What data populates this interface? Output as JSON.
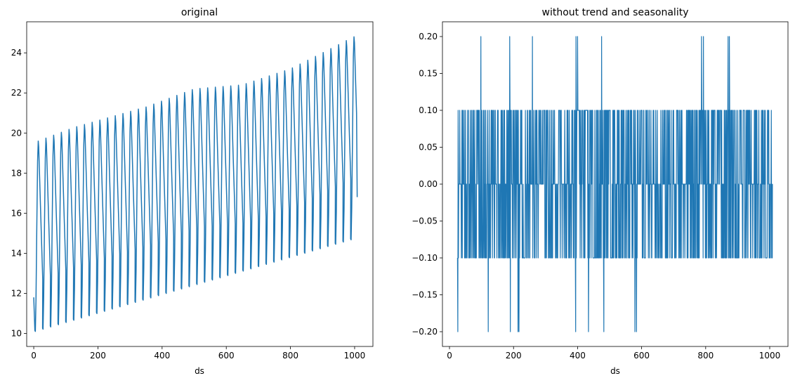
{
  "chart_data": [
    {
      "type": "line",
      "title": "original",
      "xlabel": "ds",
      "ylabel": "",
      "xlim": [
        -22,
        1057
      ],
      "ylim": [
        9.35,
        25.55
      ],
      "xticks": [
        0,
        200,
        400,
        600,
        800,
        1000
      ],
      "yticks": [
        10,
        12,
        14,
        16,
        18,
        20,
        22,
        24
      ],
      "grid": false,
      "series_color": "#1f77b4",
      "series": {
        "description": "seasonal sawtooth with ~24-step period and upward trend",
        "period": 24,
        "cycle_min": [
          {
            "x": 5,
            "y": 10.1
          },
          {
            "x": 500,
            "y": 12.4
          },
          {
            "x": 995,
            "y": 14.7
          }
        ],
        "cycle_max": [
          {
            "x": 14,
            "y": 19.6
          },
          {
            "x": 130,
            "y": 20.3
          },
          {
            "x": 350,
            "y": 21.3
          },
          {
            "x": 500,
            "y": 22.2
          },
          {
            "x": 650,
            "y": 22.4
          },
          {
            "x": 800,
            "y": 23.2
          },
          {
            "x": 900,
            "y": 24.0
          },
          {
            "x": 997,
            "y": 24.8
          }
        ],
        "start": {
          "x": 0,
          "y": 11.8
        },
        "end": {
          "x": 1008,
          "y": 16.8
        }
      }
    },
    {
      "type": "line",
      "title": "without trend and seasonality",
      "xlabel": "ds",
      "ylabel": "",
      "xlim": [
        -22,
        1057
      ],
      "ylim": [
        -0.22,
        0.22
      ],
      "xticks": [
        0,
        200,
        400,
        600,
        800,
        1000
      ],
      "yticks": [
        -0.2,
        -0.15,
        -0.1,
        -0.05,
        0.0,
        0.05,
        0.1,
        0.15,
        0.2
      ],
      "ytick_labels": [
        "−0.20",
        "−0.15",
        "−0.10",
        "−0.05",
        "0.00",
        "0.05",
        "0.10",
        "0.15",
        "0.20"
      ],
      "grid": false,
      "series_color": "#1f77b4",
      "series": {
        "description": "differenced residuals taking values in {-0.2,-0.1,0,0.1,0.2}",
        "x_range": [
          25,
          1008
        ],
        "levels": [
          -0.2,
          -0.1,
          0.0,
          0.1,
          0.2
        ],
        "spikes_up_0_2": [
          98,
          188,
          259,
          395,
          400,
          475,
          787,
          793,
          870,
          874
        ],
        "spikes_down_0_2": [
          26,
          121,
          190,
          214,
          217,
          394,
          434,
          482,
          579,
          584
        ]
      }
    }
  ]
}
